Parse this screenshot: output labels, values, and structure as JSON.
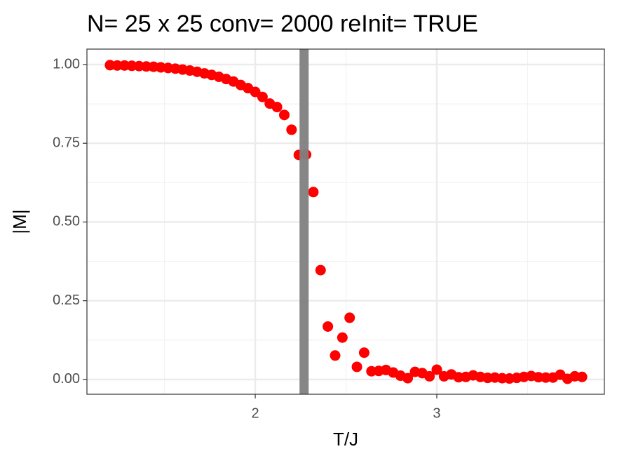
{
  "chart_data": {
    "type": "scatter",
    "title": "N= 25 x 25  conv= 2000  reInit= TRUE",
    "x_label": "T/J",
    "y_label": "|M|",
    "x": [
      1.2,
      1.24,
      1.28,
      1.32,
      1.36,
      1.4,
      1.44,
      1.48,
      1.52,
      1.56,
      1.6,
      1.64,
      1.68,
      1.72,
      1.76,
      1.8,
      1.84,
      1.88,
      1.92,
      1.96,
      2.0,
      2.04,
      2.08,
      2.12,
      2.16,
      2.2,
      2.24,
      2.28,
      2.32,
      2.36,
      2.4,
      2.44,
      2.48,
      2.52,
      2.56,
      2.6,
      2.64,
      2.68,
      2.72,
      2.76,
      2.8,
      2.84,
      2.88,
      2.92,
      2.96,
      3.0,
      3.04,
      3.08,
      3.12,
      3.16,
      3.2,
      3.24,
      3.28,
      3.32,
      3.36,
      3.4,
      3.44,
      3.48,
      3.52,
      3.56,
      3.6,
      3.64,
      3.68,
      3.72,
      3.76,
      3.8
    ],
    "values": [
      0.998,
      0.997,
      0.997,
      0.996,
      0.995,
      0.994,
      0.993,
      0.991,
      0.989,
      0.987,
      0.984,
      0.981,
      0.977,
      0.972,
      0.967,
      0.961,
      0.954,
      0.946,
      0.935,
      0.925,
      0.913,
      0.897,
      0.876,
      0.865,
      0.84,
      0.793,
      0.713,
      0.714,
      0.595,
      0.347,
      0.168,
      0.076,
      0.133,
      0.196,
      0.04,
      0.085,
      0.026,
      0.027,
      0.03,
      0.022,
      0.012,
      0.004,
      0.024,
      0.02,
      0.01,
      0.031,
      0.01,
      0.016,
      0.007,
      0.008,
      0.013,
      0.008,
      0.005,
      0.006,
      0.004,
      0.003,
      0.005,
      0.008,
      0.011,
      0.007,
      0.006,
      0.006,
      0.015,
      0.002,
      0.01,
      0.008
    ],
    "color": "#ff0000",
    "vline": 2.269,
    "vline_color": "#7f7f7f",
    "xlim": [
      1.073,
      3.923
    ],
    "ylim": [
      -0.047,
      1.049
    ],
    "xticks": [
      2,
      3
    ],
    "yticks": [
      {
        "value": 0,
        "label": "0.00"
      },
      {
        "value": 0.25,
        "label": "0.25"
      },
      {
        "value": 0.5,
        "label": "0.50"
      },
      {
        "value": 0.75,
        "label": "0.75"
      },
      {
        "value": 1,
        "label": "1.00"
      }
    ],
    "minor_xticks": [
      1.5,
      2.5,
      3.5
    ],
    "minor_yticks": [
      0.125,
      0.375,
      0.625,
      0.875
    ],
    "grid": true
  }
}
